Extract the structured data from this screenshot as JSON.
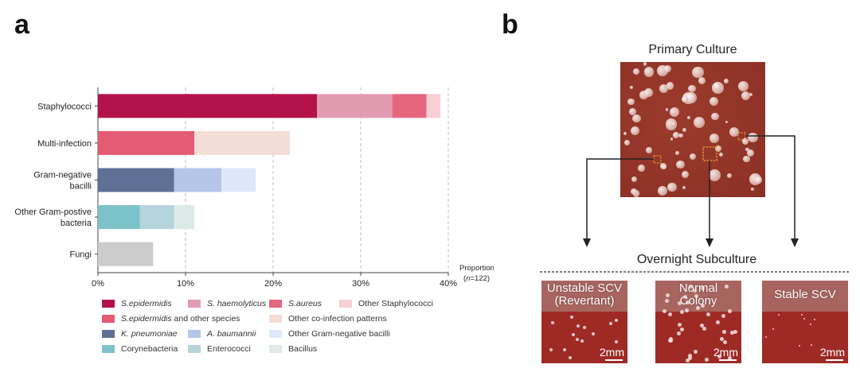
{
  "panel_a": {
    "letter": "a",
    "chart_data": {
      "type": "bar",
      "orientation": "horizontal-stacked",
      "categories": [
        "Staphylococci",
        "Multi-infection",
        "Gram-negative bacilli",
        "Other Gram-postive bacteria",
        "Fungi"
      ],
      "category_lines": [
        [
          "Staphylococci"
        ],
        [
          "Multi-infection"
        ],
        [
          "Gram-negative",
          "bacilli"
        ],
        [
          "Other Gram-postive",
          "bacteria"
        ],
        [
          "Fungi"
        ]
      ],
      "xticks": [
        "0%",
        "10%",
        "20%",
        "30%",
        "40%"
      ],
      "xlim": [
        0,
        40
      ],
      "xlabel": "Proportion",
      "n_label": "(n=122)",
      "segments": [
        {
          "category": "Staphylococci",
          "parts": [
            {
              "name": "S.epidermidis",
              "value": 25.0,
              "color": "#b3134a"
            },
            {
              "name": "S. haemolyticus",
              "value": 8.6,
              "color": "#e39bb2"
            },
            {
              "name": "S.aureus",
              "value": 3.9,
              "color": "#e5677f"
            },
            {
              "name": "Other Staphylococci",
              "value": 1.6,
              "color": "#f8cfd5"
            }
          ]
        },
        {
          "category": "Multi-infection",
          "parts": [
            {
              "name": "S.epidermidis and other species",
              "value": 11.0,
              "color": "#e45b74"
            },
            {
              "name": "Other co-infection patterns",
              "value": 10.9,
              "color": "#f3ddd6"
            }
          ]
        },
        {
          "category": "Gram-negative bacilli",
          "parts": [
            {
              "name": "K. pneumoniae",
              "value": 8.7,
              "color": "#5e7095"
            },
            {
              "name": "A. baumannii",
              "value": 5.4,
              "color": "#b3c6e8"
            },
            {
              "name": "Other Gram-negative bacilli",
              "value": 3.9,
              "color": "#dde9fb"
            }
          ]
        },
        {
          "category": "Other Gram-postive bacteria",
          "parts": [
            {
              "name": "Corynebacteria",
              "value": 4.8,
              "color": "#7cc3c9"
            },
            {
              "name": "Enterococci",
              "value": 3.9,
              "color": "#b5d4dc"
            },
            {
              "name": "Bacillus",
              "value": 2.3,
              "color": "#dcebe8"
            }
          ]
        },
        {
          "category": "Fungi",
          "parts": [
            {
              "name": "Fungi",
              "value": 6.3,
              "color": "#cccccc"
            }
          ]
        }
      ]
    },
    "legend": {
      "rows": [
        [
          {
            "parts": [
              {
                "t": "S.epidermidis",
                "i": true
              }
            ],
            "color": "#b3134a"
          },
          {
            "parts": [
              {
                "t": "S. haemolyticus",
                "i": true
              }
            ],
            "color": "#e39bb2"
          },
          {
            "parts": [
              {
                "t": "S.aureus",
                "i": true
              }
            ],
            "color": "#e5677f"
          },
          {
            "parts": [
              {
                "t": "Other Staphylococci",
                "i": false
              }
            ],
            "color": "#f8cfd5"
          }
        ],
        [
          {
            "parts": [
              {
                "t": "S.epidermidis",
                "i": true
              },
              {
                "t": " and other species",
                "i": false
              }
            ],
            "color": "#e45b74"
          },
          {
            "parts": [
              {
                "t": "Other co-infection patterns",
                "i": false
              }
            ],
            "color": "#f3ddd6"
          }
        ],
        [
          {
            "parts": [
              {
                "t": "K. pneumoniae",
                "i": true
              }
            ],
            "color": "#5e7095"
          },
          {
            "parts": [
              {
                "t": "A. baumannii",
                "i": true
              }
            ],
            "color": "#b3c6e8"
          },
          {
            "parts": [
              {
                "t": "Other Gram-negative bacilli",
                "i": false
              }
            ],
            "color": "#dde9fb"
          }
        ],
        [
          {
            "parts": [
              {
                "t": "Corynebacteria",
                "i": false
              }
            ],
            "color": "#7cc3c9"
          },
          {
            "parts": [
              {
                "t": "Enterococci",
                "i": false
              }
            ],
            "color": "#b5d4dc"
          },
          {
            "parts": [
              {
                "t": "Bacillus",
                "i": false
              }
            ],
            "color": "#dcebe8"
          }
        ]
      ]
    }
  },
  "panel_b": {
    "letter": "b",
    "primary_title": "Primary Culture",
    "overnight_title": "Overnight Subculture",
    "thumbnails": [
      {
        "label_lines": [
          "Unstable SCV",
          "(Revertant)"
        ],
        "scale": "2mm"
      },
      {
        "label_lines": [
          "Normal",
          "Colony"
        ],
        "scale": "2mm"
      },
      {
        "label_lines": [
          "Stable SCV"
        ],
        "scale": "2mm"
      }
    ],
    "colors": {
      "plate": "#9a3b2c",
      "plate_dark": "#8c2f25",
      "thumb_top": "#a86560",
      "thumb_bottom": "#9e2a25",
      "box": "#f0a23a"
    }
  }
}
